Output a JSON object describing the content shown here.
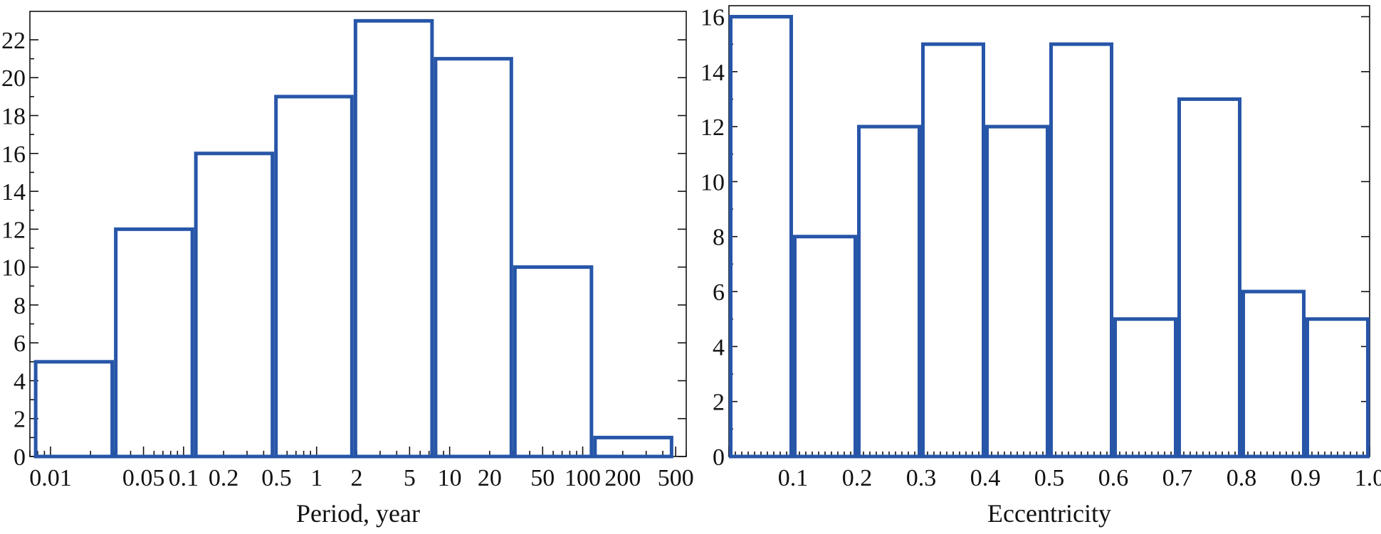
{
  "colors": {
    "bars": "#2756a8",
    "axes": "#111111",
    "background": "#ffffff"
  },
  "chart_data": [
    {
      "type": "bar",
      "subtype": "histogram",
      "xlabel": "Period, year",
      "ylabel": "",
      "x_scale": "log",
      "xlim": [
        0.007,
        600
      ],
      "ylim": [
        0,
        23.5
      ],
      "grid": false,
      "xticks": [
        0.01,
        0.05,
        0.1,
        0.2,
        0.5,
        1,
        2,
        5,
        10,
        20,
        50,
        100,
        200,
        500
      ],
      "xtick_labels": [
        "0.01",
        "0.05",
        "0.1",
        "0.2",
        "0.5",
        "1",
        "2",
        "5",
        "10",
        "20",
        "50",
        "100",
        "200",
        "500"
      ],
      "yticks": [
        0,
        2,
        4,
        6,
        8,
        10,
        12,
        14,
        16,
        18,
        20,
        22
      ],
      "ytick_labels": [
        "0",
        "2",
        "4",
        "6",
        "8",
        "10",
        "12",
        "14",
        "16",
        "18",
        "20",
        "22"
      ],
      "bin_edges": [
        0.0075,
        0.03,
        0.12,
        0.48,
        1.9,
        7.6,
        30,
        120,
        480
      ],
      "values": [
        5,
        12,
        16,
        19,
        23,
        21,
        10,
        1
      ]
    },
    {
      "type": "bar",
      "subtype": "histogram",
      "xlabel": "Eccentricity",
      "ylabel": "",
      "x_scale": "linear",
      "xlim": [
        0,
        1.0
      ],
      "ylim": [
        0,
        16.4
      ],
      "grid": false,
      "xticks": [
        0.1,
        0.2,
        0.3,
        0.4,
        0.5,
        0.6,
        0.7,
        0.8,
        0.9,
        1.0
      ],
      "xtick_labels": [
        "0.1",
        "0.2",
        "0.3",
        "0.4",
        "0.5",
        "0.6",
        "0.7",
        "0.8",
        "0.9",
        "1.0"
      ],
      "yticks": [
        0,
        2,
        4,
        6,
        8,
        10,
        12,
        14,
        16
      ],
      "ytick_labels": [
        "0",
        "2",
        "4",
        "6",
        "8",
        "10",
        "12",
        "14",
        "16"
      ],
      "bin_edges": [
        0,
        0.1,
        0.2,
        0.3,
        0.4,
        0.5,
        0.6,
        0.7,
        0.8,
        0.9,
        1.0
      ],
      "values": [
        16,
        8,
        12,
        15,
        12,
        15,
        5,
        13,
        6,
        5
      ]
    }
  ]
}
